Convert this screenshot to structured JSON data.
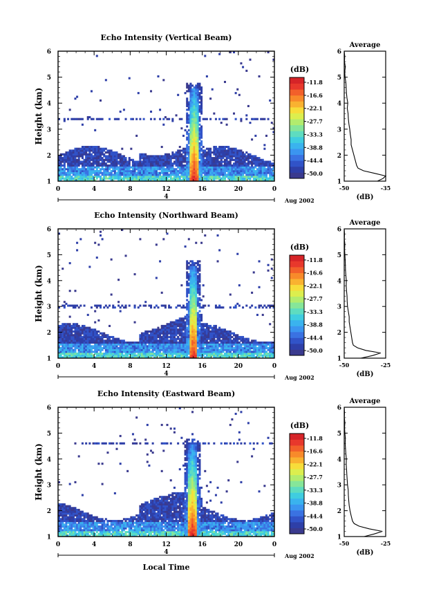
{
  "figure": {
    "xlabel": "Local Time"
  },
  "colorbar": {
    "unit": "(dB)",
    "ticks": [
      "-11.8",
      "-16.6",
      "-22.1",
      "-27.7",
      "-33.3",
      "-38.8",
      "-44.4",
      "-50.0"
    ],
    "colors": [
      "#3a3a8e",
      "#2e3fa8",
      "#3153c8",
      "#3a72e2",
      "#3b95f0",
      "#3ab3ee",
      "#3fcde0",
      "#5edcc0",
      "#86e699",
      "#b2ec6e",
      "#dcee4e",
      "#f7dd3a",
      "#f9b230",
      "#f88a2a",
      "#f2602a",
      "#e8382c",
      "#d62428"
    ]
  },
  "chart_data": [
    {
      "type": "heatmap",
      "title": "Echo Intensity (Vertical Beam)",
      "ylabel": "Height (km)",
      "ylim": [
        1,
        6
      ],
      "yticks": [
        "1",
        "2",
        "3",
        "4",
        "5",
        "6"
      ],
      "xlim": [
        0,
        24
      ],
      "xticks": [
        "0",
        "4",
        "8",
        "12",
        "16",
        "20",
        "0"
      ],
      "date_ticks": [
        "4"
      ],
      "date_label": "Aug 2002",
      "color_range_db": [
        -50.0,
        -11.8
      ],
      "sporadic_layer_height_km": 3.4,
      "peak_time_h": 15.1,
      "profile": {
        "title": "Average",
        "xlabel": "(dB)",
        "xlim": [
          -50,
          -35
        ],
        "xticks": [
          "-50",
          "-35"
        ],
        "height": [
          1.0,
          1.1,
          1.2,
          1.3,
          1.4,
          1.5,
          1.6,
          1.8,
          2.0,
          2.2,
          2.4,
          2.6,
          2.8,
          3.0,
          3.2,
          3.4,
          3.6,
          3.8,
          4.0,
          4.2,
          4.4,
          4.6,
          4.8,
          5.0,
          5.2,
          5.4,
          5.6,
          5.8,
          6.0
        ],
        "value_db": [
          -38,
          -36,
          -35,
          -39,
          -43,
          -45,
          -45.5,
          -46,
          -46.5,
          -47,
          -47.5,
          -47.5,
          -47.8,
          -48,
          -48.3,
          -48.5,
          -48.6,
          -48.9,
          -48.7,
          -49,
          -49.2,
          -49.3,
          -49.4,
          -49.7,
          -49.8,
          -49.6,
          -49.9,
          -49.8,
          -50
        ]
      }
    },
    {
      "type": "heatmap",
      "title": "Echo Intensity (Northward Beam)",
      "ylabel": "Height (km)",
      "ylim": [
        1,
        6
      ],
      "yticks": [
        "1",
        "2",
        "3",
        "4",
        "5",
        "6"
      ],
      "xlim": [
        0,
        24
      ],
      "xticks": [
        "0",
        "4",
        "8",
        "12",
        "16",
        "20",
        "0"
      ],
      "date_ticks": [
        "4"
      ],
      "date_label": "Aug 2002",
      "color_range_db": [
        -50.0,
        -11.8
      ],
      "sporadic_layer_height_km": 3.0,
      "peak_time_h": 15.0,
      "profile": {
        "title": "Average",
        "xlabel": "(dB)",
        "xlim": [
          -50,
          -25
        ],
        "xticks": [
          "-50",
          "-25"
        ],
        "height": [
          1.0,
          1.1,
          1.2,
          1.3,
          1.4,
          1.5,
          1.6,
          1.8,
          2.0,
          2.2,
          2.4,
          2.6,
          2.8,
          3.0,
          3.2,
          3.4,
          3.6,
          3.8,
          4.0,
          4.2,
          4.4,
          4.6,
          4.8,
          5.0,
          5.2,
          5.4,
          5.6,
          5.8,
          6.0
        ],
        "value_db": [
          -40,
          -33,
          -28,
          -37,
          -42,
          -44.5,
          -45,
          -45.5,
          -46,
          -46.5,
          -47,
          -47,
          -47.5,
          -48,
          -48.2,
          -48.3,
          -48.6,
          -48.8,
          -48.7,
          -49,
          -49.2,
          -49.3,
          -49.4,
          -49.6,
          -49.8,
          -49.6,
          -49.9,
          -49.8,
          -50
        ]
      }
    },
    {
      "type": "heatmap",
      "title": "Echo Intensity (Eastward Beam)",
      "ylabel": "Height (km)",
      "ylim": [
        1,
        6
      ],
      "yticks": [
        "1",
        "2",
        "3",
        "4",
        "5",
        "6"
      ],
      "xlim": [
        0,
        24
      ],
      "xticks": [
        "0",
        "4",
        "8",
        "12",
        "16",
        "20",
        "0"
      ],
      "date_ticks": [
        "4"
      ],
      "date_label": "Aug 2002",
      "color_range_db": [
        -50.0,
        -11.8
      ],
      "sporadic_layer_height_km": 4.6,
      "peak_time_h": 14.9,
      "profile": {
        "title": "Average",
        "xlabel": "(dB)",
        "xlim": [
          -50,
          -25
        ],
        "xticks": [
          "-50",
          "-25"
        ],
        "height": [
          1.0,
          1.1,
          1.2,
          1.3,
          1.4,
          1.5,
          1.6,
          1.8,
          2.0,
          2.2,
          2.4,
          2.6,
          2.8,
          3.0,
          3.2,
          3.4,
          3.6,
          3.8,
          4.0,
          4.2,
          4.4,
          4.6,
          4.8,
          5.0,
          5.2,
          5.4,
          5.6,
          5.8,
          6.0
        ],
        "value_db": [
          -38,
          -32,
          -27,
          -35,
          -41,
          -44,
          -45,
          -45.8,
          -46.5,
          -47,
          -47.3,
          -47.5,
          -47.6,
          -48,
          -48.2,
          -48.4,
          -48.6,
          -48.8,
          -48.7,
          -49,
          -49.2,
          -49.4,
          -49.3,
          -49.6,
          -49.8,
          -49.6,
          -49.9,
          -49.8,
          -50
        ]
      }
    }
  ]
}
